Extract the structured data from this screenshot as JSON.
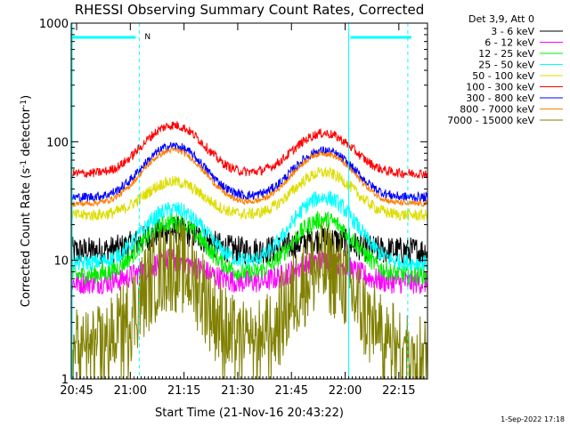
{
  "chart_data": {
    "type": "line",
    "title": "RHESSI Observing Summary Count Rates, Corrected",
    "xlabel": "Start Time (21-Nov-16 20:43:22)",
    "ylabel": "Corrected Count Rate (s⁻¹ detector⁻¹)",
    "yscale": "log",
    "ylim": [
      1,
      1000
    ],
    "xlim_minutes_after_start": [
      -1.5,
      98
    ],
    "x_ticks": [
      {
        "label": "20:45",
        "minutes": 0
      },
      {
        "label": "21:00",
        "minutes": 15
      },
      {
        "label": "21:15",
        "minutes": 30
      },
      {
        "label": "21:30",
        "minutes": 45
      },
      {
        "label": "21:45",
        "minutes": 60
      },
      {
        "label": "22:00",
        "minutes": 75
      },
      {
        "label": "22:15",
        "minutes": 90
      }
    ],
    "y_ticks": [
      {
        "label": "1",
        "value": 1
      },
      {
        "label": "10",
        "value": 10
      },
      {
        "label": "100",
        "value": 100
      },
      {
        "label": "1000",
        "value": 1000
      }
    ],
    "legend_header": "Det 3,9, Att 0",
    "legend_position": "outside-right",
    "series": [
      {
        "name": "3 - 6 keV",
        "color": "#000000",
        "base": 12,
        "peak1": 18,
        "peak2": 15,
        "noise": 0.12
      },
      {
        "name": "6 - 12 keV",
        "color": "#ff00ff",
        "base": 6.5,
        "peak1": 10,
        "peak2": 10,
        "noise": 0.1
      },
      {
        "name": "12 - 25 keV",
        "color": "#00ee00",
        "base": 7.5,
        "peak1": 21,
        "peak2": 22,
        "noise": 0.08
      },
      {
        "name": "25 - 50 keV",
        "color": "#00ffff",
        "base": 9.5,
        "peak1": 27,
        "peak2": 34,
        "noise": 0.07
      },
      {
        "name": "50 - 100 keV",
        "color": "#dddd00",
        "base": 24,
        "peak1": 46,
        "peak2": 55,
        "noise": 0.05
      },
      {
        "name": "100 - 300 keV",
        "color": "#ff0000",
        "base": 54,
        "peak1": 138,
        "peak2": 118,
        "noise": 0.04
      },
      {
        "name": "300 - 800 keV",
        "color": "#0000ff",
        "base": 34,
        "peak1": 92,
        "peak2": 84,
        "noise": 0.04
      },
      {
        "name": "800 - 7000 keV",
        "color": "#ff8000",
        "base": 30,
        "peak1": 85,
        "peak2": 80,
        "noise": 0.025
      },
      {
        "name": "7000 - 15000 keV",
        "color": "#808000",
        "base": 1.6,
        "peak1": 9,
        "peak2": 8.5,
        "noise": 0.4
      }
    ],
    "peak_times_minutes": [
      27,
      69
    ],
    "peak_width_minutes": 10,
    "night_intervals_minutes": [
      [
        -1.5,
        17
      ],
      [
        76,
        98
      ]
    ],
    "saa_bars": [
      [
        -1.5,
        16.5
      ],
      [
        76.5,
        93.5
      ]
    ],
    "dashed_markers_minutes": [
      17.5,
      92.5
    ],
    "solid_markers_minutes": [
      76
    ],
    "annotation_N": {
      "text": "N",
      "minutes": 19
    }
  },
  "footer": {
    "date": "1-Sep-2022 17:18"
  }
}
